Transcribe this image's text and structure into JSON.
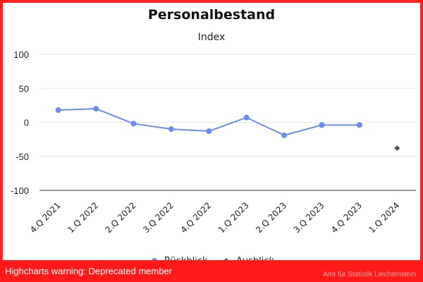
{
  "chart_data": {
    "type": "line",
    "title": "Personalbestand",
    "subtitle": "Index",
    "xlabel": "",
    "ylabel": "",
    "ylim": [
      -100,
      100
    ],
    "yticks": [
      100,
      50,
      0,
      -50,
      -100
    ],
    "grid": true,
    "legend_position": "bottom-center",
    "categories": [
      "4.Q 2021",
      "1.Q 2022",
      "2.Q 2022",
      "3.Q 2022",
      "4.Q 2022",
      "1.Q 2023",
      "2.Q 2023",
      "3.Q 2023",
      "4.Q 2023",
      "1.Q 2024"
    ],
    "series": [
      {
        "name": "Rückblick",
        "color": "#6b8cf5",
        "marker": "circle",
        "values": [
          18,
          20,
          -2,
          -10,
          -13,
          7,
          -19,
          -4,
          -4,
          null
        ]
      },
      {
        "name": "Ausblick",
        "color": "#555555",
        "marker": "diamond",
        "values": [
          null,
          null,
          null,
          null,
          null,
          null,
          null,
          null,
          null,
          -38
        ]
      }
    ]
  },
  "warning": {
    "text": "Highcharts warning: Deprecated member"
  },
  "credits": {
    "text": "Amt für Statistik Liechtenstein"
  }
}
